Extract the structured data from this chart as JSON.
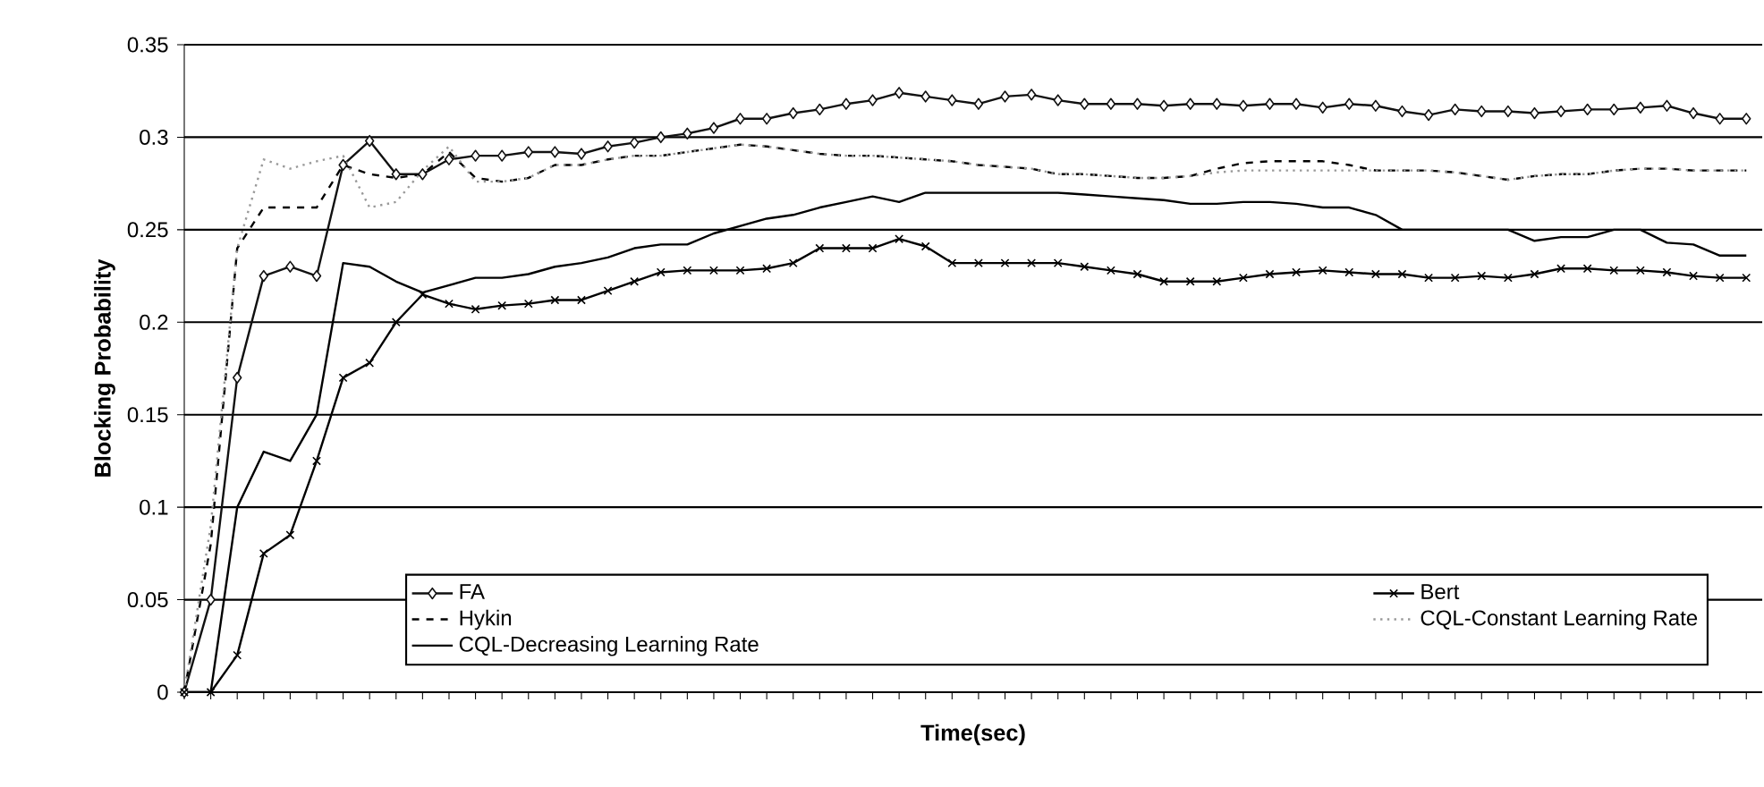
{
  "chart_data": {
    "type": "line",
    "xlabel": "Time(sec)",
    "ylabel": "Blocking Probability",
    "categories": [
      null,
      null,
      null,
      null,
      null,
      null,
      null,
      null,
      null,
      null,
      null,
      null,
      null,
      null,
      null,
      null,
      null,
      null,
      null,
      null,
      null,
      null,
      null,
      null,
      null,
      null,
      null,
      null,
      null,
      null,
      null,
      null,
      null,
      null,
      null,
      null,
      null,
      null,
      null,
      null,
      null,
      null,
      null,
      null,
      null,
      null,
      null,
      null,
      null,
      null,
      null,
      null,
      null,
      null,
      null,
      null,
      null,
      null,
      null,
      null
    ],
    "ylim": [
      0,
      0.35
    ],
    "yticks": [
      {
        "value": 0,
        "label": "0"
      },
      {
        "value": 0.05,
        "label": "0.05"
      },
      {
        "value": 0.1,
        "label": "0.1"
      },
      {
        "value": 0.15,
        "label": "0.15"
      },
      {
        "value": 0.2,
        "label": "0.2"
      },
      {
        "value": 0.25,
        "label": "0.25"
      },
      {
        "value": 0.3,
        "label": "0.3"
      },
      {
        "value": 0.35,
        "label": "0.35"
      }
    ],
    "grid": "y",
    "legend": "bottom",
    "series": [
      {
        "name": "FA",
        "color": "#111111",
        "marker": "diamond",
        "line_style": "solid",
        "values": [
          0,
          0.05,
          0.17,
          0.225,
          0.23,
          0.225,
          0.285,
          0.298,
          0.28,
          0.28,
          0.288,
          0.29,
          0.29,
          0.292,
          0.292,
          0.291,
          0.295,
          0.297,
          0.3,
          0.302,
          0.305,
          0.31,
          0.31,
          0.313,
          0.315,
          0.318,
          0.32,
          0.324,
          0.322,
          0.32,
          0.318,
          0.322,
          0.323,
          0.32,
          0.318,
          0.318,
          0.318,
          0.317,
          0.318,
          0.318,
          0.317,
          0.318,
          0.318,
          0.316,
          0.318,
          0.317,
          0.314,
          0.312,
          0.315,
          0.314,
          0.314,
          0.313,
          0.314,
          0.315,
          0.315,
          0.316,
          0.317,
          0.313,
          0.31,
          0.31
        ]
      },
      {
        "name": "Bert",
        "color": "#000000",
        "marker": "cross",
        "line_style": "solid",
        "values": [
          0,
          0,
          0.02,
          0.075,
          0.085,
          0.125,
          0.17,
          0.178,
          0.2,
          0.215,
          0.21,
          0.207,
          0.209,
          0.21,
          0.212,
          0.212,
          0.217,
          0.222,
          0.227,
          0.228,
          0.228,
          0.228,
          0.229,
          0.232,
          0.24,
          0.24,
          0.24,
          0.245,
          0.241,
          0.232,
          0.232,
          0.232,
          0.232,
          0.232,
          0.23,
          0.228,
          0.226,
          0.222,
          0.222,
          0.222,
          0.224,
          0.226,
          0.227,
          0.228,
          0.227,
          0.226,
          0.226,
          0.224,
          0.224,
          0.225,
          0.224,
          0.226,
          0.229,
          0.229,
          0.228,
          0.228,
          0.227,
          0.225,
          0.224,
          0.224
        ]
      },
      {
        "name": "Hykin",
        "color": "#000000",
        "marker": "none",
        "line_style": "dashed",
        "values": [
          0,
          0.08,
          0.24,
          0.262,
          0.262,
          0.262,
          0.285,
          0.28,
          0.278,
          0.28,
          0.292,
          0.278,
          0.276,
          0.278,
          0.285,
          0.285,
          0.288,
          0.29,
          0.29,
          0.292,
          0.294,
          0.296,
          0.295,
          0.293,
          0.291,
          0.29,
          0.29,
          0.289,
          0.288,
          0.287,
          0.285,
          0.284,
          0.283,
          0.28,
          0.28,
          0.279,
          0.278,
          0.278,
          0.279,
          0.283,
          0.286,
          0.287,
          0.287,
          0.287,
          0.285,
          0.282,
          0.282,
          0.282,
          0.281,
          0.279,
          0.277,
          0.279,
          0.28,
          0.28,
          0.282,
          0.283,
          0.283,
          0.282,
          0.282,
          0.282
        ]
      },
      {
        "name": "CQL-Constant Learning Rate",
        "color": "#999999",
        "marker": "none",
        "line_style": "dotted",
        "values": [
          0,
          0.09,
          0.24,
          0.288,
          0.283,
          0.287,
          0.29,
          0.262,
          0.265,
          0.282,
          0.295,
          0.276,
          0.276,
          0.278,
          0.285,
          0.285,
          0.288,
          0.29,
          0.29,
          0.292,
          0.294,
          0.296,
          0.295,
          0.293,
          0.291,
          0.29,
          0.29,
          0.289,
          0.288,
          0.287,
          0.285,
          0.284,
          0.283,
          0.28,
          0.28,
          0.279,
          0.278,
          0.278,
          0.279,
          0.281,
          0.282,
          0.282,
          0.282,
          0.282,
          0.282,
          0.282,
          0.282,
          0.282,
          0.281,
          0.279,
          0.277,
          0.279,
          0.28,
          0.28,
          0.282,
          0.283,
          0.283,
          0.282,
          0.282,
          0.282
        ]
      },
      {
        "name": "CQL-Decreasing Learning Rate",
        "color": "#000000",
        "marker": "none",
        "line_style": "solid",
        "values": [
          0,
          0,
          0.1,
          0.13,
          0.125,
          0.15,
          0.232,
          0.23,
          0.222,
          0.216,
          0.22,
          0.224,
          0.224,
          0.226,
          0.23,
          0.232,
          0.235,
          0.24,
          0.242,
          0.242,
          0.248,
          0.252,
          0.256,
          0.258,
          0.262,
          0.265,
          0.268,
          0.265,
          0.27,
          0.27,
          0.27,
          0.27,
          0.27,
          0.27,
          0.269,
          0.268,
          0.267,
          0.266,
          0.264,
          0.264,
          0.265,
          0.265,
          0.264,
          0.262,
          0.262,
          0.258,
          0.25,
          0.25,
          0.25,
          0.25,
          0.25,
          0.244,
          0.246,
          0.246,
          0.25,
          0.25,
          0.243,
          0.242,
          0.236,
          0.236
        ]
      }
    ]
  }
}
